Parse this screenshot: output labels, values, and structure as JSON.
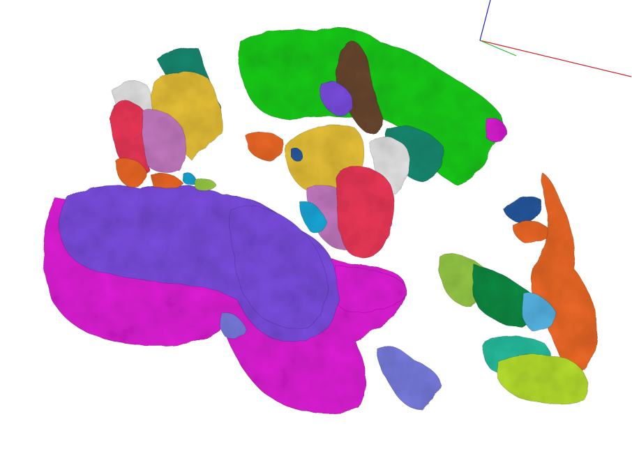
{
  "scene": {
    "background": "#ffffff",
    "axes": {
      "x_color": "#d0202a",
      "y_color": "#1fbf2a",
      "z_color": "#1a1ad0"
    },
    "palette": {
      "purple": "#7b4fe0",
      "magenta": "#e020d8",
      "green": "#1fcc1f",
      "yellow": "#e8c23a",
      "red": "#ee3a5a",
      "orange": "#ef6b2a",
      "teal": "#1f8a72",
      "brown": "#6a4a32",
      "pink": "#c77dc4",
      "white": "#e8e8e8",
      "blue": "#2a5aa0",
      "lightblue": "#5ab8e8",
      "periwinkle": "#7a7ee0",
      "darkgreen": "#138a45",
      "lime": "#b8e030",
      "olive": "#9acc4a",
      "aqua": "#2ac0a0",
      "cyan": "#1aa8d8"
    }
  }
}
